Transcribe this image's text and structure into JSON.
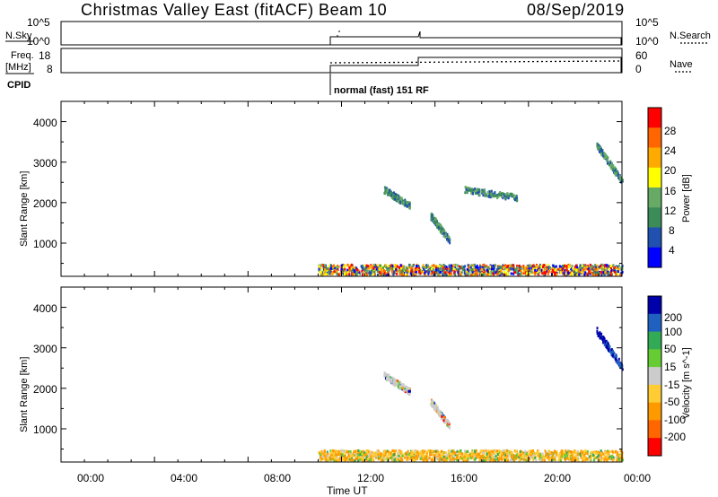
{
  "header": {
    "station": "Christmas Valley East (fitACF)",
    "beam": "Beam 10",
    "date": "08/Sep/2019"
  },
  "status_panels": {
    "nsky_label": "N.Sky",
    "nsky_ticks": [
      "10^5",
      "10^0"
    ],
    "nsearch_label": "N.Search",
    "nsearch_ticks": [
      "10^5",
      "10^0"
    ],
    "freq_label": "Freq.",
    "freq_unit": "[MHz]",
    "freq_ticks": [
      "18",
      "8"
    ],
    "nave_label": "Nave",
    "nave_ticks": [
      "60",
      "0"
    ],
    "cpid_label": "CPID",
    "cpid_text": "normal (fast) 151 RF"
  },
  "colors": {
    "power": [
      "#0000ff",
      "#2050b0",
      "#3c8c5a",
      "#66aa66",
      "#ffff00",
      "#ffaa00",
      "#ff6600",
      "#ff0000"
    ],
    "velocity": [
      "#ff0000",
      "#ff6600",
      "#ff9900",
      "#ffcc33",
      "#cccccc",
      "#66cc33",
      "#33aa55",
      "#2060c0",
      "#0000aa"
    ]
  },
  "chart_data": [
    {
      "type": "heatmap",
      "panel": "power",
      "ylabel": "Slant Range [km]",
      "yticks": [
        "4000",
        "3000",
        "2000",
        "1000"
      ],
      "ylim": [
        180,
        4500
      ],
      "xlim": [
        0,
        24
      ],
      "colorbar_label": "Power [dB]",
      "colorbar_ticks": [
        "28",
        "24",
        "20",
        "16",
        "12",
        "8",
        "4"
      ],
      "colorbar_range": [
        0,
        32
      ],
      "features": [
        {
          "t_start": 11.0,
          "t_end": 24.0,
          "range_start": 200,
          "range_end": 450,
          "description": "near-range ground scatter band"
        },
        {
          "t_start": 13.8,
          "t_end": 14.9,
          "range_start": 2300,
          "range_end": 1900
        },
        {
          "t_start": 15.8,
          "t_end": 16.6,
          "range_start": 1650,
          "range_end": 1050
        },
        {
          "t_start": 17.2,
          "t_end": 19.5,
          "range_start": 2300,
          "range_end": 2100
        },
        {
          "t_start": 22.9,
          "t_end": 24.0,
          "range_start": 3400,
          "range_end": 2500
        }
      ]
    },
    {
      "type": "heatmap",
      "panel": "velocity",
      "ylabel": "Slant Range [km]",
      "yticks": [
        "4000",
        "3000",
        "2000",
        "1000"
      ],
      "ylim": [
        180,
        4500
      ],
      "xlim": [
        0,
        24
      ],
      "xlabel": "Time UT",
      "xticks": [
        "00:00",
        "04:00",
        "08:00",
        "12:00",
        "16:00",
        "20:00",
        "00:00"
      ],
      "colorbar_label": "Velocity [m s^-1]",
      "colorbar_ticks": [
        "200",
        "100",
        "50",
        "15",
        "-15",
        "-50",
        "-100",
        "-200"
      ],
      "features": [
        {
          "t_start": 11.0,
          "t_end": 24.0,
          "range_start": 200,
          "range_end": 450,
          "velocity_sign": "negative",
          "description": "orange ground scatter band"
        },
        {
          "t_start": 13.8,
          "t_end": 14.9,
          "range_start": 2300,
          "range_end": 1900,
          "velocity_sign": "near zero"
        },
        {
          "t_start": 15.8,
          "t_end": 16.6,
          "range_start": 1650,
          "range_end": 1050,
          "velocity_sign": "near zero"
        },
        {
          "t_start": 22.9,
          "t_end": 24.0,
          "range_start": 3400,
          "range_end": 2500,
          "velocity_sign": "positive"
        }
      ]
    }
  ]
}
